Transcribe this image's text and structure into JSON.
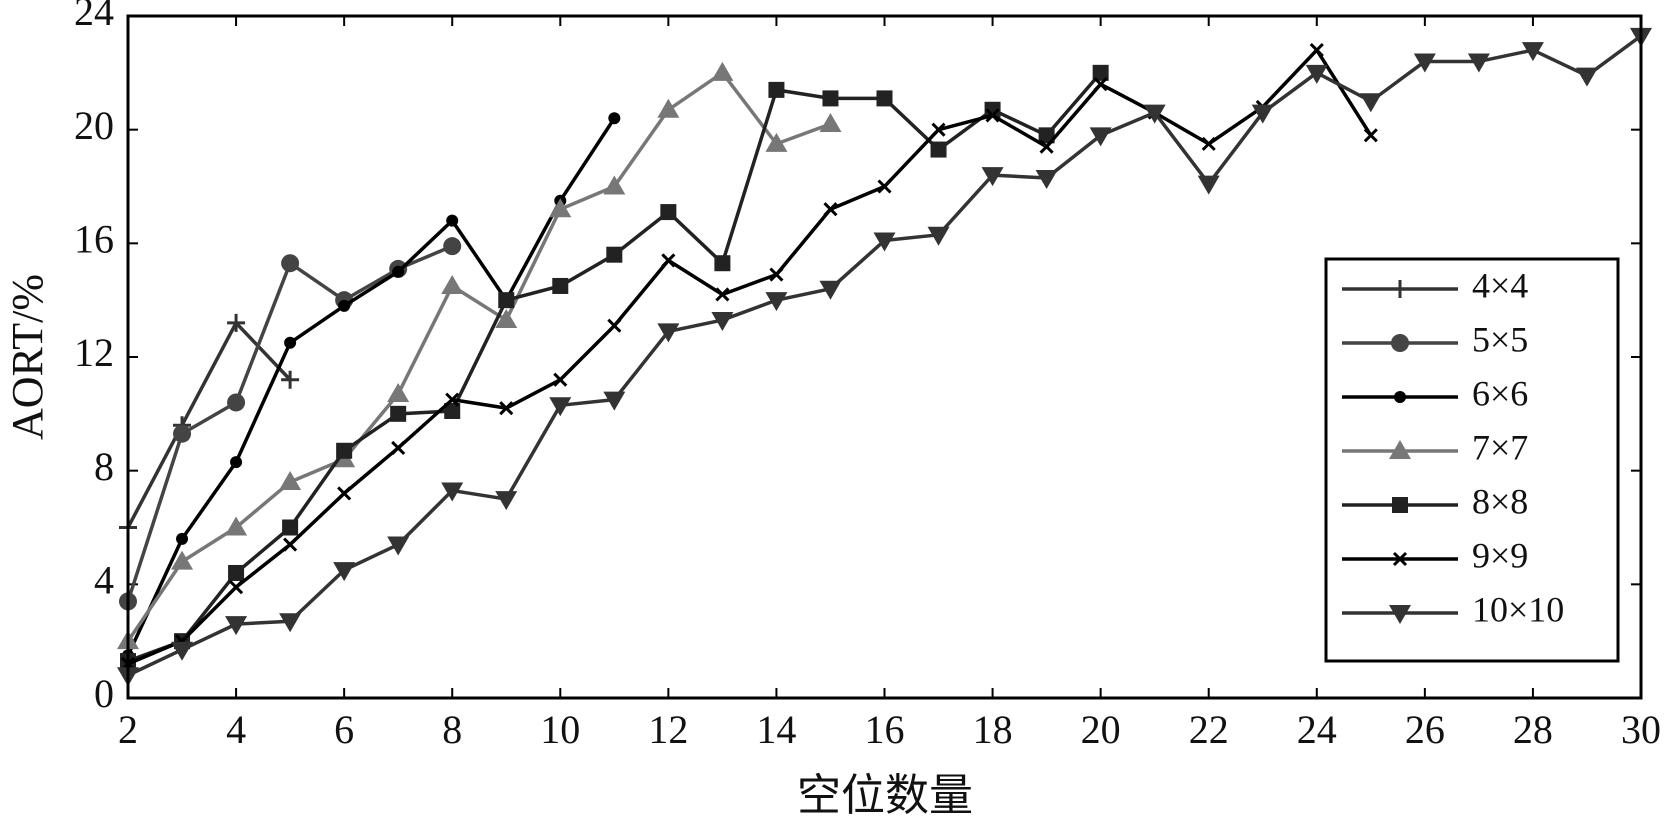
{
  "chart_data": {
    "type": "line",
    "xlabel": "空位数量",
    "ylabel": "AORT/%",
    "xlim": [
      2,
      30
    ],
    "ylim": [
      0,
      24
    ],
    "xticks": [
      2,
      4,
      6,
      8,
      10,
      12,
      14,
      16,
      18,
      20,
      22,
      24,
      26,
      28,
      30
    ],
    "yticks": [
      0,
      4,
      8,
      12,
      16,
      20,
      24
    ],
    "legend": "lower right",
    "series": [
      {
        "name": "4×4",
        "color": "#333333",
        "marker": "plus",
        "x": [
          2,
          3,
          4,
          5
        ],
        "values": [
          6.0,
          9.6,
          13.2,
          11.2
        ]
      },
      {
        "name": "5×5",
        "color": "#444444",
        "marker": "circle",
        "x": [
          2,
          3,
          4,
          5,
          6,
          7,
          8
        ],
        "values": [
          3.4,
          9.3,
          10.4,
          15.3,
          14.0,
          15.1,
          15.9
        ]
      },
      {
        "name": "6×6",
        "color": "#000000",
        "marker": "dot",
        "x": [
          2,
          3,
          4,
          5,
          6,
          7,
          8,
          9,
          10,
          11
        ],
        "values": [
          1.5,
          5.6,
          8.3,
          12.5,
          13.8,
          15.0,
          16.8,
          14.0,
          17.5,
          20.4
        ]
      },
      {
        "name": "7×7",
        "color": "#777777",
        "marker": "triangle-up",
        "x": [
          2,
          3,
          4,
          5,
          6,
          7,
          8,
          9,
          10,
          11,
          12,
          13,
          14,
          15
        ],
        "values": [
          2.0,
          4.8,
          6.0,
          7.6,
          8.4,
          10.7,
          14.5,
          13.3,
          17.2,
          18.0,
          20.7,
          22.0,
          19.5,
          20.2
        ]
      },
      {
        "name": "8×8",
        "color": "#222222",
        "marker": "square",
        "x": [
          2,
          3,
          4,
          5,
          6,
          7,
          8,
          9,
          10,
          11,
          12,
          13,
          14,
          15,
          16,
          17,
          18,
          19,
          20
        ],
        "values": [
          1.3,
          2.0,
          4.4,
          6.0,
          8.7,
          10.0,
          10.1,
          14.0,
          14.5,
          15.6,
          17.1,
          15.3,
          21.4,
          21.1,
          21.1,
          19.3,
          20.7,
          19.8,
          22.0
        ]
      },
      {
        "name": "9×9",
        "color": "#000000",
        "marker": "cross",
        "x": [
          2,
          3,
          4,
          5,
          6,
          7,
          8,
          9,
          10,
          11,
          12,
          13,
          14,
          15,
          16,
          17,
          18,
          19,
          20,
          21,
          22,
          23,
          24,
          25
        ],
        "values": [
          1.2,
          2.0,
          3.9,
          5.4,
          7.2,
          8.8,
          10.5,
          10.2,
          11.2,
          13.1,
          15.4,
          14.2,
          14.9,
          17.2,
          18.0,
          20.0,
          20.5,
          19.4,
          21.6,
          20.6,
          19.5,
          20.8,
          22.8,
          19.8
        ]
      },
      {
        "name": "10×10",
        "color": "#333333",
        "marker": "triangle-down",
        "x": [
          2,
          3,
          4,
          5,
          6,
          7,
          8,
          9,
          10,
          11,
          12,
          13,
          14,
          15,
          16,
          17,
          18,
          19,
          20,
          21,
          22,
          23,
          24,
          25,
          26,
          27,
          28,
          29,
          30
        ],
        "values": [
          0.8,
          1.7,
          2.6,
          2.7,
          4.5,
          5.4,
          7.3,
          7.0,
          10.3,
          10.5,
          12.9,
          13.3,
          14.0,
          14.4,
          16.1,
          16.3,
          18.4,
          18.3,
          19.8,
          20.6,
          18.1,
          20.6,
          22.0,
          21.0,
          22.4,
          22.4,
          22.8,
          21.9,
          23.3
        ]
      }
    ]
  }
}
